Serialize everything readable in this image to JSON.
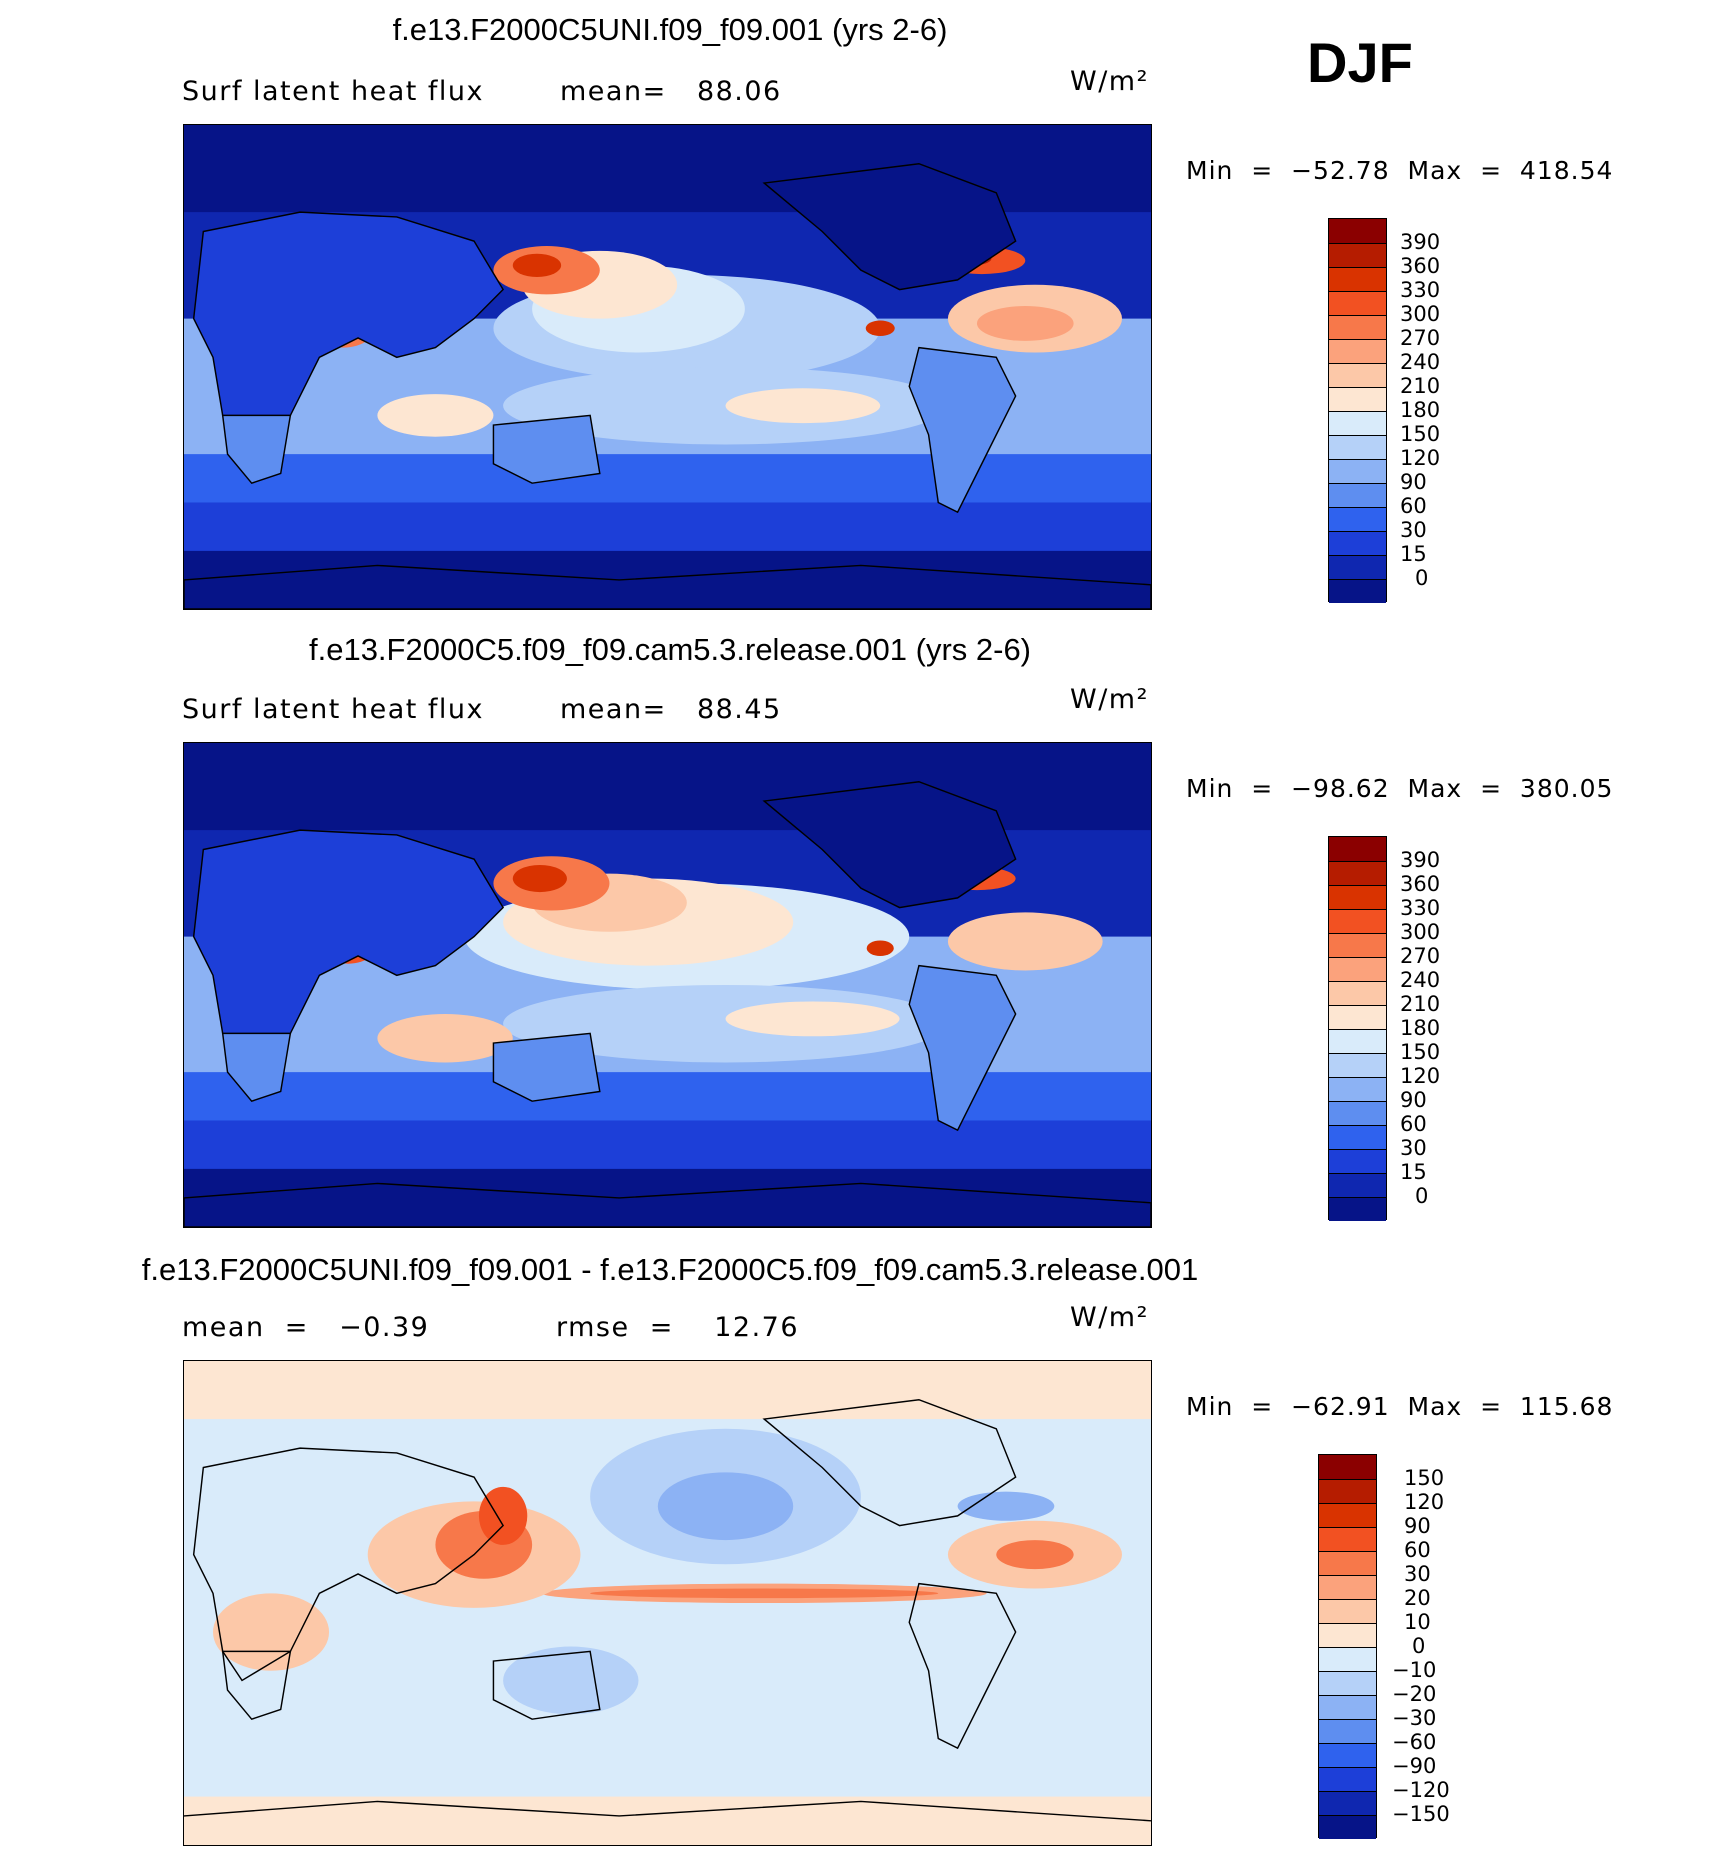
{
  "season": "DJF",
  "panels": [
    {
      "title": "f.e13.F2000C5UNI.f09_f09.001 (yrs 2-6)",
      "sub_left": "Surf latent heat flux",
      "sub_mid": "mean=   88.06",
      "units": "W/m²",
      "minmax": "Min  =  −52.78  Max  =  418.54",
      "colorbar_labels": [
        "390",
        "360",
        "330",
        "300",
        "270",
        "240",
        "210",
        "180",
        "150",
        "120",
        "90",
        "60",
        "30",
        "15",
        "0"
      ]
    },
    {
      "title": "f.e13.F2000C5.f09_f09.cam5.3.release.001 (yrs 2-6)",
      "sub_left": "Surf latent heat flux",
      "sub_mid": "mean=   88.45",
      "units": "W/m²",
      "minmax": "Min  =  −98.62  Max  =  380.05",
      "colorbar_labels": [
        "390",
        "360",
        "330",
        "300",
        "270",
        "240",
        "210",
        "180",
        "150",
        "120",
        "90",
        "60",
        "30",
        "15",
        "0"
      ]
    },
    {
      "title": "f.e13.F2000C5UNI.f09_f09.001 - f.e13.F2000C5.f09_f09.cam5.3.release.001",
      "sub_left": "mean  =   −0.39",
      "sub_mid": "rmse  =    12.76",
      "units": "W/m²",
      "minmax": "Min  =  −62.91  Max  =  115.68",
      "colorbar_labels": [
        "150",
        "120",
        "90",
        "60",
        "30",
        "20",
        "10",
        "0",
        "−10",
        "−20",
        "−30",
        "−60",
        "−90",
        "−120",
        "−150"
      ]
    }
  ],
  "colors": {
    "abs_scale": [
      "#8b0000",
      "#b51c00",
      "#d93300",
      "#f25122",
      "#f7784a",
      "#fba27c",
      "#fcc8a8",
      "#fde6d2",
      "#d9ebfa",
      "#b5d1f8",
      "#8cb2f4",
      "#5e8ef0",
      "#2f62ee",
      "#1d3fd8",
      "#0f27b0",
      "#061488"
    ],
    "diff_scale": [
      "#8b0000",
      "#b51c00",
      "#d93300",
      "#f25122",
      "#f7784a",
      "#fba27c",
      "#fcc8a8",
      "#fde6d2",
      "#d9ebfa",
      "#b5d1f8",
      "#8cb2f4",
      "#5e8ef0",
      "#2f62ee",
      "#1d3fd8",
      "#0f27b0",
      "#061488"
    ]
  }
}
